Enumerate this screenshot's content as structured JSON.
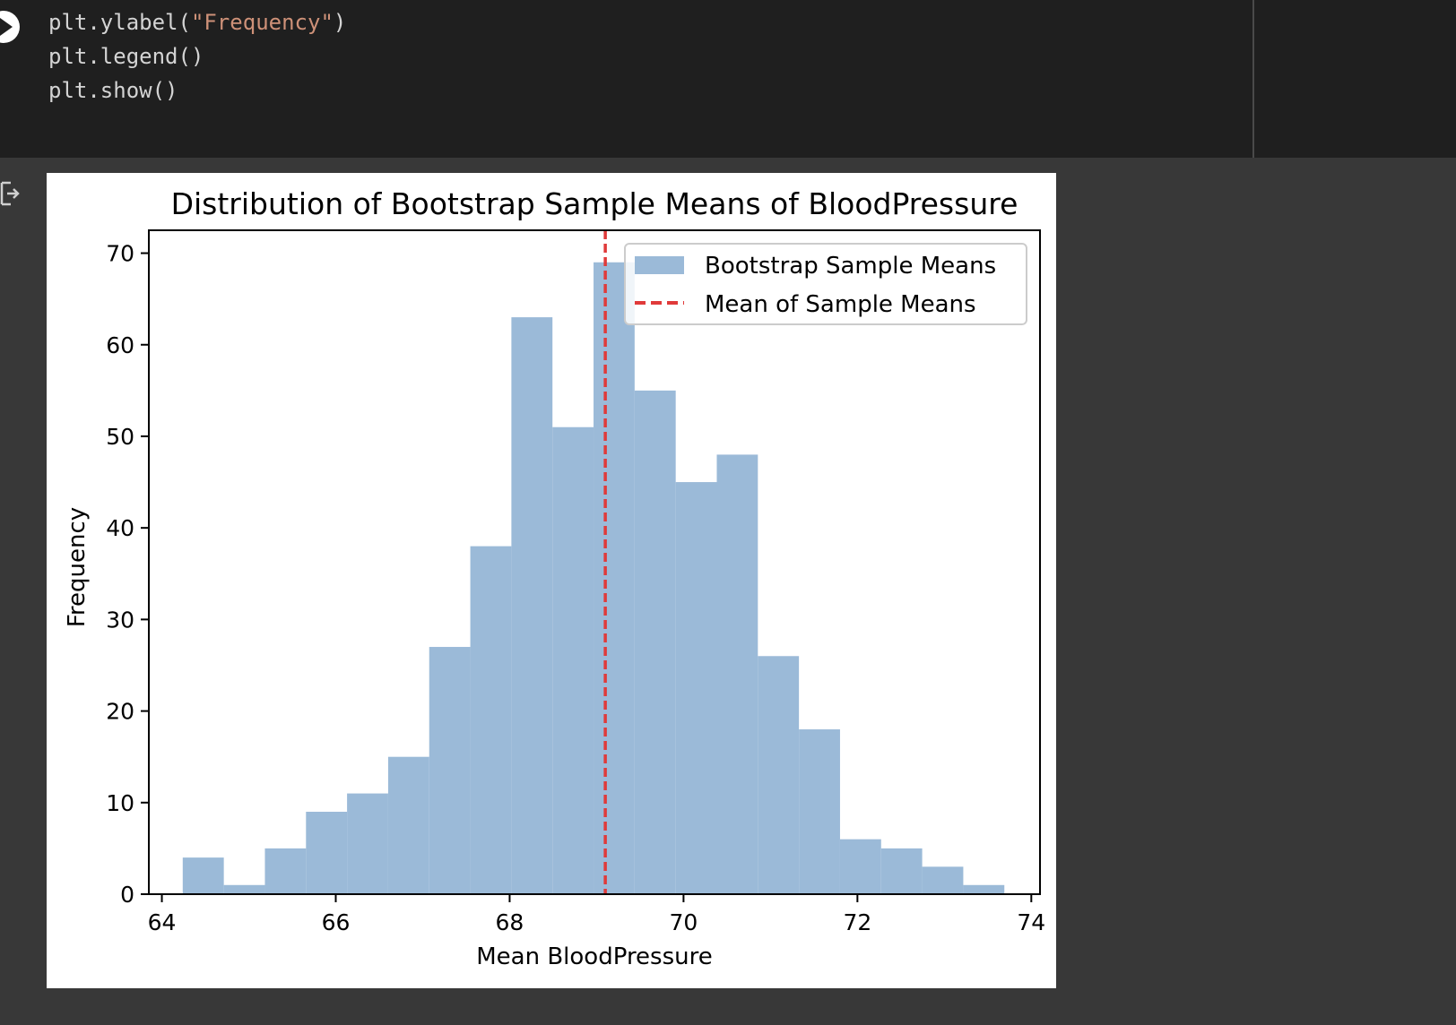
{
  "code_cell": {
    "lines": [
      {
        "pre": "plt.ylabel(",
        "str": "\"Frequency\"",
        "post": ")"
      },
      {
        "pre": "plt.legend()",
        "str": "",
        "post": ""
      },
      {
        "pre": "plt.show()",
        "str": "",
        "post": ""
      }
    ]
  },
  "colors": {
    "bar": "#9bbad8",
    "mean_line": "#e03a3a",
    "code_bg": "#1f1f1f",
    "output_bg": "#383838"
  },
  "icons": [
    "run-icon",
    "output-redirect-icon"
  ],
  "chart_data": {
    "type": "bar",
    "title": "Distribution of Bootstrap Sample Means of BloodPressure",
    "xlabel": "Mean BloodPressure",
    "ylabel": "Frequency",
    "xlim": [
      63.85,
      74.1
    ],
    "ylim": [
      0,
      72.5
    ],
    "xticks": [
      64,
      66,
      68,
      70,
      72,
      74
    ],
    "yticks": [
      0,
      10,
      20,
      30,
      40,
      50,
      60,
      70
    ],
    "bin_start": 64.24,
    "bin_width": 0.4725,
    "values": [
      4,
      1,
      5,
      9,
      11,
      15,
      27,
      38,
      63,
      51,
      69,
      55,
      45,
      48,
      26,
      18,
      6,
      5,
      3,
      1
    ],
    "mean_line": 69.1,
    "legend": {
      "placement": "upper right",
      "entries": [
        "Bootstrap Sample Means",
        "Mean of Sample Means"
      ]
    },
    "grid": false
  }
}
